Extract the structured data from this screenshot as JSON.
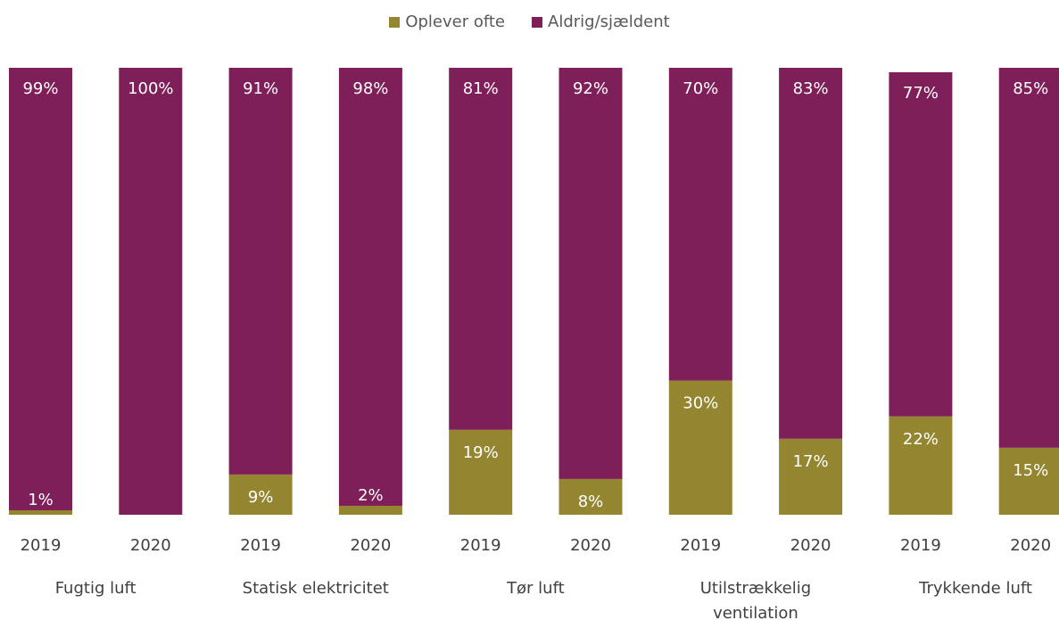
{
  "chart_data": {
    "type": "bar",
    "stacked": true,
    "legend_position": "top-center",
    "grid": false,
    "ylim": [
      0,
      100
    ],
    "colors": {
      "Oplever ofte": "#948630",
      "Aldrig/sjældent": "#7F1F5A"
    },
    "legend": [
      "Oplever ofte",
      "Aldrig/sjældent"
    ],
    "groups": [
      {
        "name": "Fugtig luft",
        "name_lines": [
          "Fugtig luft"
        ]
      },
      {
        "name": "Statisk elektricitet",
        "name_lines": [
          "Statisk elektricitet"
        ]
      },
      {
        "name": "Tør luft",
        "name_lines": [
          "Tør luft"
        ]
      },
      {
        "name": "Utilstrækkelig ventilation",
        "name_lines": [
          "Utilstrækkelig",
          "ventilation"
        ]
      },
      {
        "name": "Trykkende luft",
        "name_lines": [
          "Trykkende luft"
        ]
      }
    ],
    "x": [
      "2019",
      "2020",
      "2019",
      "2020",
      "2019",
      "2020",
      "2019",
      "2020",
      "2019",
      "2020"
    ],
    "series": [
      {
        "name": "Oplever ofte",
        "values": [
          1,
          0,
          9,
          2,
          19,
          8,
          30,
          17,
          22,
          15
        ],
        "labels": [
          "1%",
          "",
          "9%",
          "2%",
          "19%",
          "8%",
          "30%",
          "17%",
          "22%",
          "15%"
        ]
      },
      {
        "name": "Aldrig/sjældent",
        "values": [
          99,
          100,
          91,
          98,
          81,
          92,
          70,
          83,
          77,
          85
        ],
        "labels": [
          "99%",
          "100%",
          "91%",
          "98%",
          "81%",
          "92%",
          "70%",
          "83%",
          "77%",
          "85%"
        ]
      }
    ]
  }
}
